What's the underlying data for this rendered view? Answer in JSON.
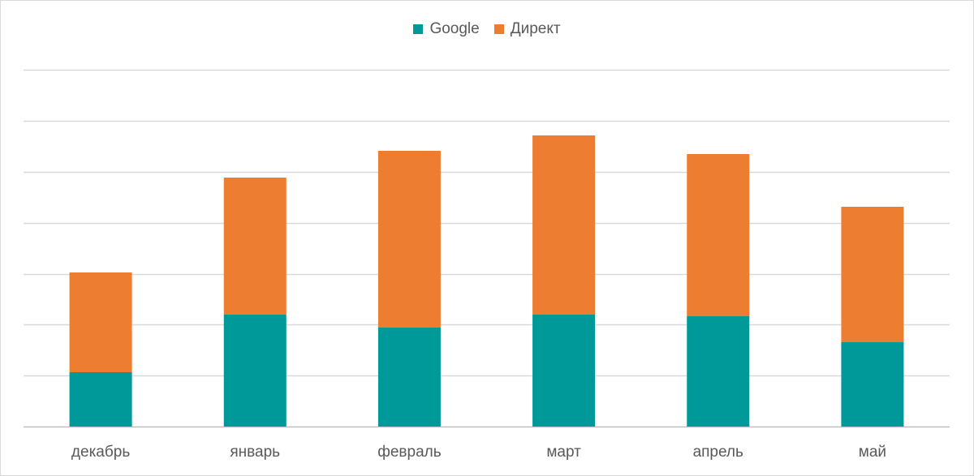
{
  "chart_data": {
    "type": "bar",
    "stacked": true,
    "categories": [
      "декабрь",
      "январь",
      "февраль",
      "март",
      "апрель",
      "май"
    ],
    "series": [
      {
        "name": "Google",
        "color": "#009999",
        "values": [
          67,
          138,
          122,
          138,
          136,
          104
        ]
      },
      {
        "name": "Директ",
        "color": "#ED7D31",
        "values": [
          123,
          169,
          218,
          221,
          200,
          167
        ]
      }
    ],
    "ylim": [
      0,
      440
    ],
    "y_gridline_step": 62.8,
    "grid": true,
    "legend": "top-center",
    "title": "",
    "xlabel": "",
    "ylabel": ""
  }
}
